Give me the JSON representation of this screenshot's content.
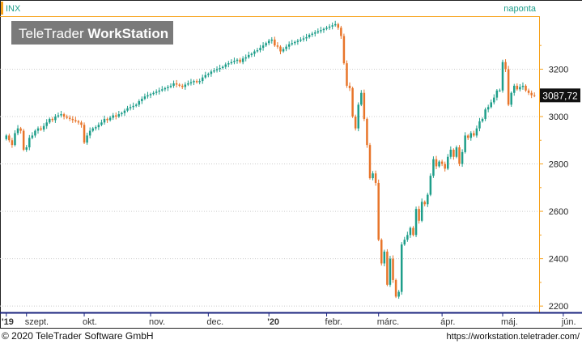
{
  "header": {
    "symbol": "INX",
    "frequency": "naponta"
  },
  "watermark": {
    "brand": "TeleTrader",
    "product": "WorkStation"
  },
  "footer": {
    "copyright": "© 2020 TeleTrader Software GmbH",
    "url": "https://workstation.teletrader.com/"
  },
  "colors": {
    "up": "#1e9e8a",
    "down": "#e8752a",
    "accent": "#f7a21b",
    "axis_line": "#1a237e",
    "grid": "#cccccc",
    "watermark_bg": "#7a7a7a"
  },
  "chart_data": {
    "type": "candlestick",
    "title": "INX",
    "last_value_label": "3087,72",
    "ylim": [
      2180,
      3410
    ],
    "y_ticks": [
      {
        "value": 2200,
        "label": "2200"
      },
      {
        "value": 2400,
        "label": "2400"
      },
      {
        "value": 2600,
        "label": "2600"
      },
      {
        "value": 2800,
        "label": "2800"
      },
      {
        "value": 3000,
        "label": "3000"
      },
      {
        "value": 3200,
        "label": "3200"
      }
    ],
    "x_ticks": [
      {
        "index": 0,
        "label": "'19",
        "bold": true
      },
      {
        "index": 7,
        "label": "szept.",
        "bold": false
      },
      {
        "index": 27,
        "label": "okt.",
        "bold": false
      },
      {
        "index": 50,
        "label": "nov.",
        "bold": false
      },
      {
        "index": 70,
        "label": "dec.",
        "bold": false
      },
      {
        "index": 91,
        "label": "'20",
        "bold": true
      },
      {
        "index": 111,
        "label": "febr.",
        "bold": false
      },
      {
        "index": 129,
        "label": "márc.",
        "bold": false
      },
      {
        "index": 151,
        "label": "ápr.",
        "bold": false
      },
      {
        "index": 172,
        "label": "máj.",
        "bold": false
      },
      {
        "index": 193,
        "label": "jún.",
        "bold": false
      }
    ],
    "closes": [
      2920,
      2900,
      2880,
      2930,
      2950,
      2940,
      2860,
      2870,
      2910,
      2920,
      2940,
      2950,
      2945,
      2960,
      2975,
      2990,
      2985,
      3000,
      3005,
      3010,
      3000,
      2995,
      2990,
      2985,
      2980,
      2975,
      2965,
      2890,
      2920,
      2940,
      2950,
      2955,
      2965,
      2975,
      2990,
      2985,
      2995,
      3005,
      3000,
      3010,
      3015,
      3025,
      3035,
      3040,
      3045,
      3050,
      3065,
      3075,
      3085,
      3090,
      3095,
      3100,
      3105,
      3110,
      3115,
      3120,
      3125,
      3130,
      3140,
      3135,
      3130,
      3125,
      3135,
      3140,
      3145,
      3150,
      3145,
      3150,
      3165,
      3175,
      3180,
      3190,
      3195,
      3200,
      3205,
      3210,
      3220,
      3225,
      3230,
      3235,
      3240,
      3230,
      3245,
      3250,
      3260,
      3265,
      3275,
      3280,
      3290,
      3300,
      3310,
      3320,
      3325,
      3300,
      3295,
      3275,
      3285,
      3295,
      3305,
      3310,
      3315,
      3320,
      3325,
      3330,
      3335,
      3345,
      3350,
      3355,
      3360,
      3365,
      3370,
      3375,
      3380,
      3385,
      3390,
      3375,
      3340,
      3225,
      3130,
      3120,
      3000,
      2950,
      3050,
      3100,
      2990,
      2880,
      2740,
      2760,
      2720,
      2480,
      2380,
      2430,
      2290,
      2400,
      2310,
      2240,
      2260,
      2460,
      2480,
      2500,
      2530,
      2500,
      2610,
      2560,
      2640,
      2630,
      2670,
      2750,
      2820,
      2790,
      2810,
      2800,
      2780,
      2830,
      2860,
      2830,
      2870,
      2800,
      2850,
      2920,
      2910,
      2930,
      2920,
      2950,
      2980,
      2990,
      3030,
      3040,
      3060,
      3080,
      3110,
      3110,
      3230,
      3200,
      3050,
      3100,
      3130,
      3115,
      3125,
      3130,
      3110,
      3100,
      3090,
      3087.72
    ],
    "opens": [
      2905,
      2920,
      2900,
      2880,
      2930,
      2950,
      2940,
      2860,
      2870,
      2910,
      2920,
      2940,
      2950,
      2945,
      2960,
      2975,
      2990,
      2985,
      3000,
      3005,
      3010,
      3000,
      2995,
      2990,
      2985,
      2980,
      2975,
      2965,
      2890,
      2920,
      2940,
      2950,
      2955,
      2965,
      2975,
      2990,
      2985,
      2995,
      3005,
      3000,
      3010,
      3015,
      3025,
      3035,
      3040,
      3045,
      3050,
      3065,
      3075,
      3085,
      3090,
      3095,
      3100,
      3105,
      3110,
      3115,
      3120,
      3125,
      3130,
      3140,
      3135,
      3130,
      3125,
      3135,
      3140,
      3145,
      3150,
      3145,
      3150,
      3165,
      3175,
      3180,
      3190,
      3195,
      3200,
      3205,
      3210,
      3220,
      3225,
      3230,
      3235,
      3240,
      3230,
      3245,
      3250,
      3260,
      3265,
      3275,
      3280,
      3290,
      3300,
      3310,
      3320,
      3325,
      3300,
      3295,
      3275,
      3285,
      3295,
      3305,
      3310,
      3315,
      3320,
      3325,
      3330,
      3335,
      3345,
      3350,
      3355,
      3360,
      3365,
      3370,
      3375,
      3380,
      3385,
      3390,
      3375,
      3340,
      3225,
      3130,
      3120,
      3000,
      2950,
      3050,
      3100,
      2990,
      2880,
      2740,
      2760,
      2720,
      2480,
      2380,
      2430,
      2290,
      2400,
      2310,
      2240,
      2260,
      2460,
      2480,
      2500,
      2530,
      2500,
      2610,
      2560,
      2640,
      2630,
      2670,
      2750,
      2820,
      2790,
      2810,
      2800,
      2780,
      2830,
      2860,
      2830,
      2870,
      2800,
      2850,
      2920,
      2910,
      2930,
      2920,
      2950,
      2980,
      2990,
      3030,
      3040,
      3060,
      3080,
      3110,
      3110,
      3230,
      3200,
      3050,
      3100,
      3130,
      3115,
      3125,
      3130,
      3110,
      3100,
      3090
    ]
  }
}
